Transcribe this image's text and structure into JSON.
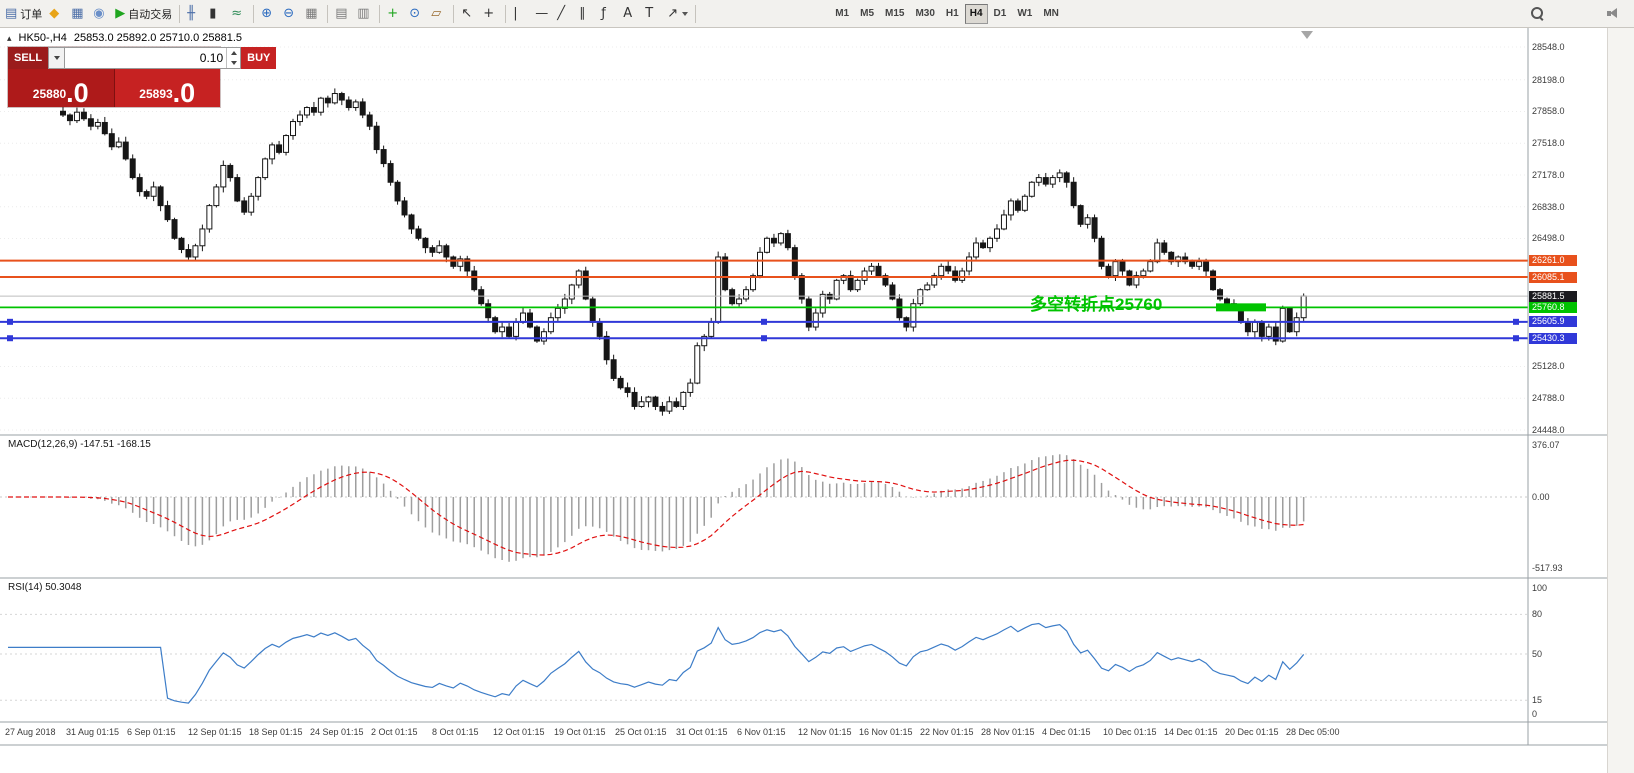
{
  "toolbar": {
    "buttons": [
      {
        "name": "new-order",
        "label": "订单",
        "glyph": "▤",
        "glyph_color": "#4a6da7"
      },
      {
        "name": "metaquotes",
        "glyph": "◆",
        "glyph_color": "#e8a417"
      },
      {
        "name": "new-chart",
        "glyph": "▦",
        "glyph_color": "#4a6da7"
      },
      {
        "name": "profile",
        "glyph": "◉",
        "glyph_color": "#6a8fc8"
      },
      {
        "name": "auto-trading",
        "label": "自动交易",
        "glyph": "▶",
        "glyph_color": "#1fa51f"
      },
      {
        "sep": true
      },
      {
        "name": "bar-chart-mode",
        "glyph": "╫",
        "glyph_color": "#4a6da7"
      },
      {
        "name": "candlestick-mode",
        "glyph": "▮",
        "glyph_color": "#333333"
      },
      {
        "name": "line-chart-mode",
        "glyph": "≈",
        "glyph_color": "#2e8b57"
      },
      {
        "sep": true
      },
      {
        "name": "zoom-in",
        "glyph": "⊕",
        "glyph_color": "#2d6cc0"
      },
      {
        "name": "zoom-out",
        "glyph": "⊖",
        "glyph_color": "#2d6cc0"
      },
      {
        "name": "auto-arrange",
        "glyph": "▦",
        "glyph_color": "#7a7a7a"
      },
      {
        "sep": true
      },
      {
        "name": "tile-windows",
        "glyph": "▤",
        "glyph_color": "#7a7a7a"
      },
      {
        "name": "cascade-windows",
        "glyph": "▥",
        "glyph_color": "#7a7a7a"
      },
      {
        "sep": true
      },
      {
        "name": "new-chart-window",
        "glyph": "+",
        "glyph_color": "#1fa51f"
      },
      {
        "name": "periods",
        "glyph": "⊙",
        "glyph_color": "#2d6cc0"
      },
      {
        "name": "templates",
        "glyph": "▱",
        "glyph_color": "#9a6b2f"
      },
      {
        "sep": true
      },
      {
        "name": "cursor",
        "glyph": "↖",
        "glyph_color": "#333333"
      },
      {
        "name": "crosshair",
        "glyph": "+",
        "glyph_color": "#333333"
      },
      {
        "sep": true
      },
      {
        "name": "vertical-line-tool",
        "glyph": "|",
        "glyph_color": "#333333"
      },
      {
        "name": "horizontal-line-tool",
        "glyph": "—",
        "glyph_color": "#333333"
      },
      {
        "name": "trendline-tool",
        "glyph": "╱",
        "glyph_color": "#333333"
      },
      {
        "name": "equidistant-channel-tool",
        "glyph": "∥",
        "glyph_color": "#333333"
      },
      {
        "name": "fibonacci-tool",
        "glyph": "ƒ",
        "glyph_color": "#333333"
      },
      {
        "name": "text-tool",
        "glyph": "A",
        "glyph_color": "#333333"
      },
      {
        "name": "text-label-tool",
        "glyph": "T",
        "glyph_color": "#333333"
      },
      {
        "name": "arrows-tool",
        "glyph": "↗",
        "glyph_color": "#333333",
        "caret": true
      },
      {
        "sep": true
      }
    ],
    "timeframes": [
      "M1",
      "M5",
      "M15",
      "M30",
      "H1",
      "H4",
      "D1",
      "W1",
      "MN"
    ],
    "active_timeframe": "H4"
  },
  "header": {
    "toggle_glyph": "▴",
    "symbol_period": "HK50-,H4",
    "quotes": "25853.0 25892.0 25710.0 25881.5"
  },
  "trade_panel": {
    "sell_label": "SELL",
    "buy_label": "BUY",
    "lot_value": "0.10",
    "sell_price": "25880",
    "sell_price_frac": ".0",
    "buy_price": "25893",
    "buy_price_frac": ".0"
  },
  "annotation": {
    "text": "多空转折点25760",
    "color": "#00c300"
  },
  "chart_data": {
    "type": "candlestick",
    "symbol": "HK50-",
    "timeframe": "H4",
    "price_axis_range": [
      24448.0,
      28548.0
    ],
    "price_ticks": [
      "28548.0",
      "28198.0",
      "27858.0",
      "27518.0",
      "27178.0",
      "26838.0",
      "26498.0",
      "25128.0",
      "24788.0",
      "24448.0"
    ],
    "closes": [
      27820,
      27760,
      27850,
      27780,
      27700,
      27740,
      27620,
      27480,
      27530,
      27350,
      27150,
      27000,
      26950,
      27050,
      26850,
      26700,
      26500,
      26380,
      26300,
      26420,
      26600,
      26850,
      27050,
      27280,
      27150,
      26900,
      26780,
      26950,
      27150,
      27350,
      27500,
      27420,
      27600,
      27750,
      27820,
      27900,
      27850,
      28000,
      27950,
      28050,
      27980,
      27900,
      27960,
      27820,
      27700,
      27450,
      27300,
      27100,
      26900,
      26750,
      26600,
      26500,
      26400,
      26350,
      26420,
      26300,
      26200,
      26280,
      26150,
      25950,
      25800,
      25650,
      25500,
      25550,
      25450,
      25600,
      25700,
      25550,
      25400,
      25500,
      25650,
      25750,
      25850,
      26000,
      26150,
      25850,
      25600,
      25450,
      25200,
      25000,
      24900,
      24850,
      24700,
      24750,
      24800,
      24700,
      24650,
      24750,
      24700,
      24850,
      24950,
      25350,
      25450,
      25600,
      26300,
      25950,
      25800,
      25850,
      25950,
      26100,
      26350,
      26500,
      26450,
      26550,
      26400,
      26100,
      25850,
      25550,
      25700,
      25900,
      25850,
      26050,
      26100,
      25950,
      26050,
      26150,
      26200,
      26100,
      26000,
      25850,
      25650,
      25550,
      25800,
      25950,
      26000,
      26100,
      26200,
      26150,
      26050,
      26150,
      26300,
      26450,
      26400,
      26500,
      26600,
      26750,
      26900,
      26800,
      26950,
      27100,
      27150,
      27080,
      27150,
      27200,
      27100,
      26850,
      26650,
      26720,
      26500,
      26200,
      26100,
      26250,
      26150,
      26000,
      26100,
      26150,
      26250,
      26450,
      26350,
      26250,
      26300,
      26250,
      26200,
      26250,
      26150,
      25950,
      25850,
      25800,
      25750,
      25600,
      25500,
      25600,
      25450,
      25550,
      25400,
      25750,
      25500,
      25650,
      25881.5
    ],
    "levels": [
      {
        "price": 26261.0,
        "label": "26261.0",
        "color": "#e8511c",
        "width": 2
      },
      {
        "price": 26085.1,
        "label": "26085.1",
        "color": "#e8511c",
        "width": 2
      },
      {
        "price": 25760.8,
        "label": "25760.8",
        "color": "#00c300",
        "width": 1.8
      },
      {
        "price": 25605.9,
        "label": "25605.9",
        "color": "#3038d8",
        "width": 2,
        "handles": true
      },
      {
        "price": 25430.3,
        "label": "25430.3",
        "color": "#3038d8",
        "width": 2,
        "handles": true
      }
    ],
    "current_price": {
      "price": 25881.5,
      "label": "25881.5",
      "tag_color": "#1b1b20",
      "line_color": "#bdbdbd"
    },
    "highlight_segment": {
      "price": 25760.8,
      "color": "#00c300"
    },
    "macd": {
      "label": "MACD(12,26,9) -147.51 -168.15",
      "params": [
        12,
        26,
        9
      ],
      "values": [
        -147.51,
        -168.15
      ],
      "ticks": [
        "376.07",
        "0.00",
        "-517.93"
      ],
      "tick_values": [
        376.07,
        0,
        -517.93
      ]
    },
    "rsi": {
      "label": "RSI(14) 50.3048",
      "period": 14,
      "value": 50.3048,
      "ticks": [
        "100",
        "80",
        "50",
        "15",
        "0"
      ],
      "tick_values": [
        100,
        80,
        50,
        15,
        0
      ]
    },
    "time_labels": [
      "27 Aug 2018",
      "31 Aug 01:15",
      "6 Sep 01:15",
      "12 Sep 01:15",
      "18 Sep 01:15",
      "24 Sep 01:15",
      "2 Oct 01:15",
      "8 Oct 01:15",
      "12 Oct 01:15",
      "19 Oct 01:15",
      "25 Oct 01:15",
      "31 Oct 01:15",
      "6 Nov 01:15",
      "12 Nov 01:15",
      "16 Nov 01:15",
      "22 Nov 01:15",
      "28 Nov 01:15",
      "4 Dec 01:15",
      "10 Dec 01:15",
      "14 Dec 01:15",
      "20 Dec 01:15",
      "28 Dec 05:00"
    ]
  },
  "colors": {
    "candle_up": "#ffffff",
    "candle_down": "#161616",
    "candle_outline": "#161616",
    "macd_hist": "#9e9e9e",
    "macd_signal": "#e01010",
    "rsi_line": "#3d7dc8",
    "grid": "#ececec",
    "panel_border": "#9aa0a6",
    "axis_text": "#3a3a3a"
  }
}
